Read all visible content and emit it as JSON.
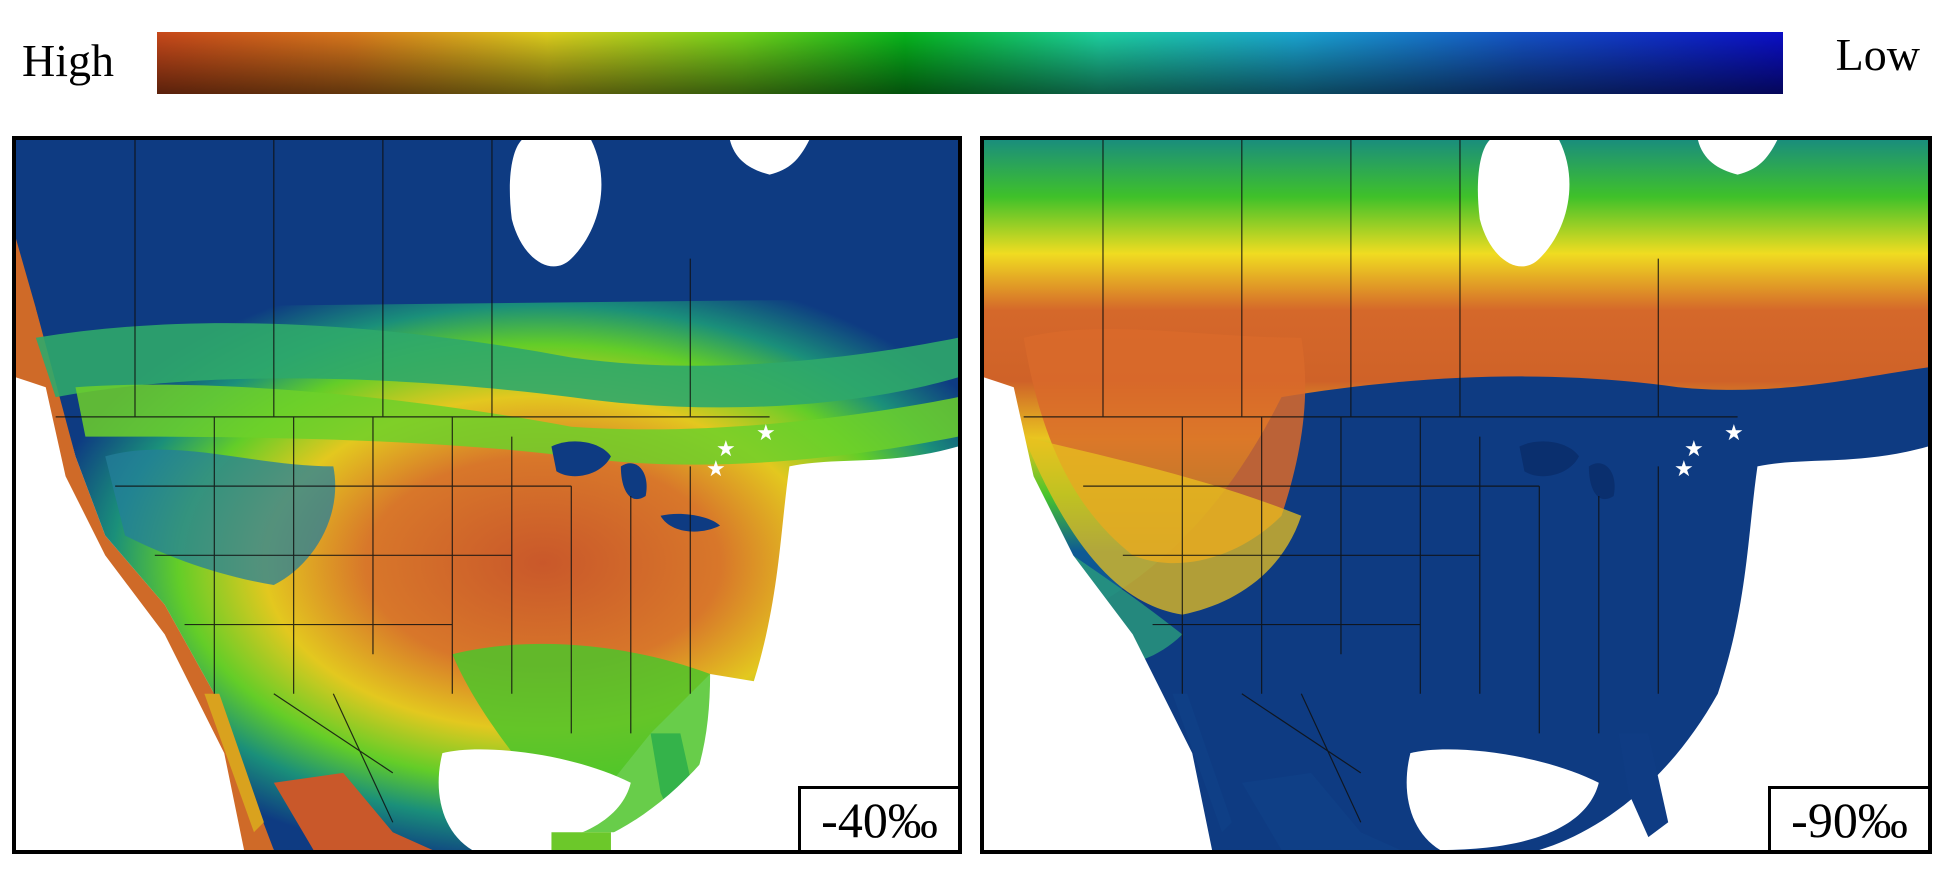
{
  "legend": {
    "high_label": "High",
    "low_label": "Low",
    "gradient_colors": [
      "#5a2a0e",
      "#c1521c",
      "#d9a21a",
      "#dede1e",
      "#5fd21a",
      "#0b9a23",
      "#1fc99e",
      "#1598d4",
      "#0d55c0",
      "#0b127e"
    ]
  },
  "panels": [
    {
      "name": "panel-left",
      "label": "-40‰",
      "fill_palette": {
        "north": "#0e3b82",
        "boreal_edge": "#2f9a6a",
        "green_band": "#48c52b",
        "yellow_band": "#e8d61e",
        "orange_core": "#cf5f26",
        "south_east": "#58c52a",
        "mexico": "#c7562a"
      }
    },
    {
      "name": "panel-right",
      "label": "-90‰",
      "fill_palette": {
        "north": "#1a8e7c",
        "boreal_edge": "#3fc12a",
        "yellow_band": "#f0dc21",
        "orange_band": "#d5682a",
        "interior": "#0e3b82",
        "south_east": "#0f3c84",
        "mexico": "#0f3f86"
      }
    }
  ],
  "markers": {
    "icon": "star-icon",
    "color": "#ffffff"
  }
}
